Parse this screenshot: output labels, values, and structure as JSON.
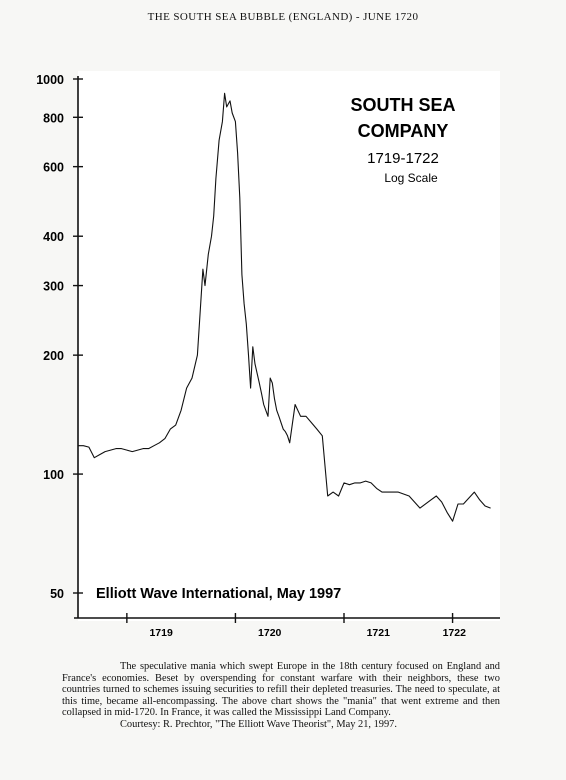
{
  "header": {
    "title": "THE SOUTH SEA BUBBLE (ENGLAND) - JUNE 1720"
  },
  "chart_data": {
    "type": "line",
    "title": "SOUTH SEA COMPANY",
    "title_line1": "SOUTH SEA",
    "title_line2": "COMPANY",
    "subtitle": "1719-1722",
    "scale_note": "Log Scale",
    "source": "Elliott Wave International, May 1997",
    "xlabel": "",
    "ylabel": "",
    "yscale": "log",
    "ylim": [
      50,
      1000
    ],
    "xlim": [
      1718.55,
      1722.4
    ],
    "y_ticks": [
      50,
      100,
      200,
      300,
      400,
      600,
      800,
      1000
    ],
    "y_tick_labels": [
      "50",
      "100",
      "200",
      "300",
      "400",
      "600",
      "800",
      "1000"
    ],
    "x_ticks": [
      1719,
      1720,
      1721,
      1722
    ],
    "x_tick_labels": [
      "1719",
      "1720",
      "1721",
      "1722"
    ],
    "grid": false,
    "legend": "none",
    "series": [
      {
        "x": [
          1718.55,
          1718.6,
          1718.65,
          1718.7,
          1718.75,
          1718.8,
          1718.85,
          1718.9,
          1718.95,
          1719.0,
          1719.05,
          1719.1,
          1719.15,
          1719.2,
          1719.25,
          1719.3,
          1719.35,
          1719.4,
          1719.45,
          1719.5,
          1719.55,
          1719.6,
          1719.65,
          1719.7,
          1719.72,
          1719.75,
          1719.78,
          1719.8,
          1719.82,
          1719.85,
          1719.88,
          1719.9,
          1719.92,
          1719.95,
          1719.97,
          1720.0,
          1720.02,
          1720.04,
          1720.06,
          1720.08,
          1720.1,
          1720.12,
          1720.14,
          1720.16,
          1720.18,
          1720.2,
          1720.22,
          1720.24,
          1720.26,
          1720.28,
          1720.3,
          1720.32,
          1720.34,
          1720.36,
          1720.38,
          1720.4,
          1720.42,
          1720.44,
          1720.46,
          1720.48,
          1720.5,
          1720.55,
          1720.6,
          1720.65,
          1720.7,
          1720.75,
          1720.8,
          1720.85,
          1720.9,
          1720.95,
          1721.0,
          1721.05,
          1721.1,
          1721.15,
          1721.2,
          1721.25,
          1721.3,
          1721.35,
          1721.4,
          1721.5,
          1721.6,
          1721.7,
          1721.8,
          1721.85,
          1721.9,
          1721.95,
          1722.0,
          1722.05,
          1722.1,
          1722.15,
          1722.2,
          1722.25,
          1722.3,
          1722.35
        ],
        "values": [
          118,
          118,
          117,
          110,
          112,
          114,
          115,
          116,
          116,
          115,
          114,
          115,
          116,
          116,
          118,
          120,
          123,
          130,
          133,
          145,
          165,
          175,
          200,
          330,
          300,
          360,
          400,
          450,
          560,
          700,
          780,
          920,
          850,
          880,
          820,
          780,
          650,
          500,
          320,
          270,
          240,
          200,
          165,
          210,
          190,
          180,
          170,
          160,
          150,
          145,
          140,
          175,
          170,
          155,
          145,
          140,
          135,
          130,
          128,
          125,
          120,
          150,
          140,
          140,
          135,
          130,
          125,
          88,
          90,
          88,
          95,
          94,
          95,
          95,
          96,
          95,
          92,
          90,
          90,
          90,
          88,
          82,
          86,
          88,
          85,
          80,
          76,
          84,
          84,
          87,
          90,
          86,
          83,
          82
        ]
      }
    ]
  },
  "caption": {
    "paragraph": "The speculative mania which swept Europe in the 18th century focused on England and France's economies. Beset by overspending for constant warfare with their neighbors, these two countries turned to schemes issuing securities to refill their depleted treasuries. The need to speculate, at this time, became all-encompassing. The above chart shows the \"mania\" that went extreme and then collapsed in mid-1720. In France, it was called the Mississippi Land Company.",
    "credit": "Courtesy: R. Prechtor, \"The Elliott Wave Theorist\", May 21, 1997."
  }
}
